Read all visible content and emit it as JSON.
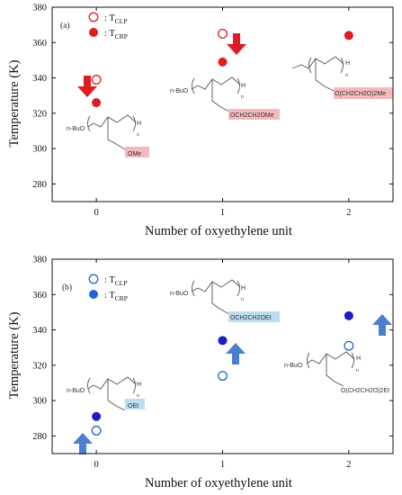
{
  "chart_data": [
    {
      "type": "scatter",
      "panel_label": "(a)",
      "xlabel": "Number of oxyethylene unit",
      "ylabel": "Temperature (K)",
      "ylim": [
        270,
        380
      ],
      "yticks": [
        280,
        300,
        320,
        340,
        360,
        380
      ],
      "xticks": [
        0,
        1,
        2
      ],
      "grid": false,
      "legend_placement": "top-left",
      "colors": {
        "series": "#e11b22",
        "highlight": "#f4b9bd",
        "arrow": "#e11b22"
      },
      "arrow_direction": "down",
      "legend": [
        {
          "symbol": "open-circle",
          "text_main": ": T",
          "text_sub": "CLP"
        },
        {
          "symbol": "filled-circle",
          "text_main": ": T",
          "text_sub": "CRP"
        }
      ],
      "series": [
        {
          "name": "TCLP",
          "marker": "open",
          "points": [
            {
              "x": 0,
              "y": 339
            },
            {
              "x": 1,
              "y": 365
            }
          ]
        },
        {
          "name": "TCRP",
          "marker": "filled",
          "points": [
            {
              "x": 0,
              "y": 326
            },
            {
              "x": 1,
              "y": 349
            },
            {
              "x": 2,
              "y": 364
            }
          ]
        }
      ],
      "structures": [
        {
          "end_group": "n-BuO",
          "side_group": "OMe",
          "repeat": "n",
          "terminal": "H"
        },
        {
          "end_group": "n-BuO",
          "side_group": "OCH2CH2OMe",
          "repeat": "n",
          "terminal": "H"
        },
        {
          "end_group": "",
          "side_group": "O(CH2CH2O)2Me",
          "repeat": "n",
          "terminal": "H"
        }
      ]
    },
    {
      "type": "scatter",
      "panel_label": "(b)",
      "xlabel": "Number of oxyethylene unit",
      "ylabel": "Temperature (K)",
      "ylim": [
        270,
        380
      ],
      "yticks": [
        280,
        300,
        320,
        340,
        360,
        380
      ],
      "xticks": [
        0,
        1,
        2
      ],
      "grid": false,
      "legend_placement": "top-left",
      "colors": {
        "series": "#1f64d6",
        "filled": "#1b1bcc",
        "highlight": "#bcdcf0",
        "arrow": "#4a7fd0"
      },
      "arrow_direction": "up",
      "legend": [
        {
          "symbol": "open-circle",
          "text_main": ": T",
          "text_sub": "CLP"
        },
        {
          "symbol": "filled-circle",
          "text_main": ": T",
          "text_sub": "CRP"
        }
      ],
      "series": [
        {
          "name": "TCLP",
          "marker": "open",
          "points": [
            {
              "x": 0,
              "y": 283
            },
            {
              "x": 1,
              "y": 314
            },
            {
              "x": 2,
              "y": 331
            }
          ]
        },
        {
          "name": "TCRP",
          "marker": "filled",
          "points": [
            {
              "x": 0,
              "y": 291
            },
            {
              "x": 1,
              "y": 334
            },
            {
              "x": 2,
              "y": 348
            }
          ]
        }
      ],
      "structures": [
        {
          "end_group": "n-BuO",
          "side_group": "OEt",
          "repeat": "n",
          "terminal": "H"
        },
        {
          "end_group": "n-BuO",
          "side_group": "OCH2CH2OEt",
          "repeat": "n",
          "terminal": "H"
        },
        {
          "end_group": "n-BuO",
          "side_group": "O(CH2CH2O)2Et",
          "repeat": "n",
          "terminal": "H"
        }
      ]
    }
  ]
}
